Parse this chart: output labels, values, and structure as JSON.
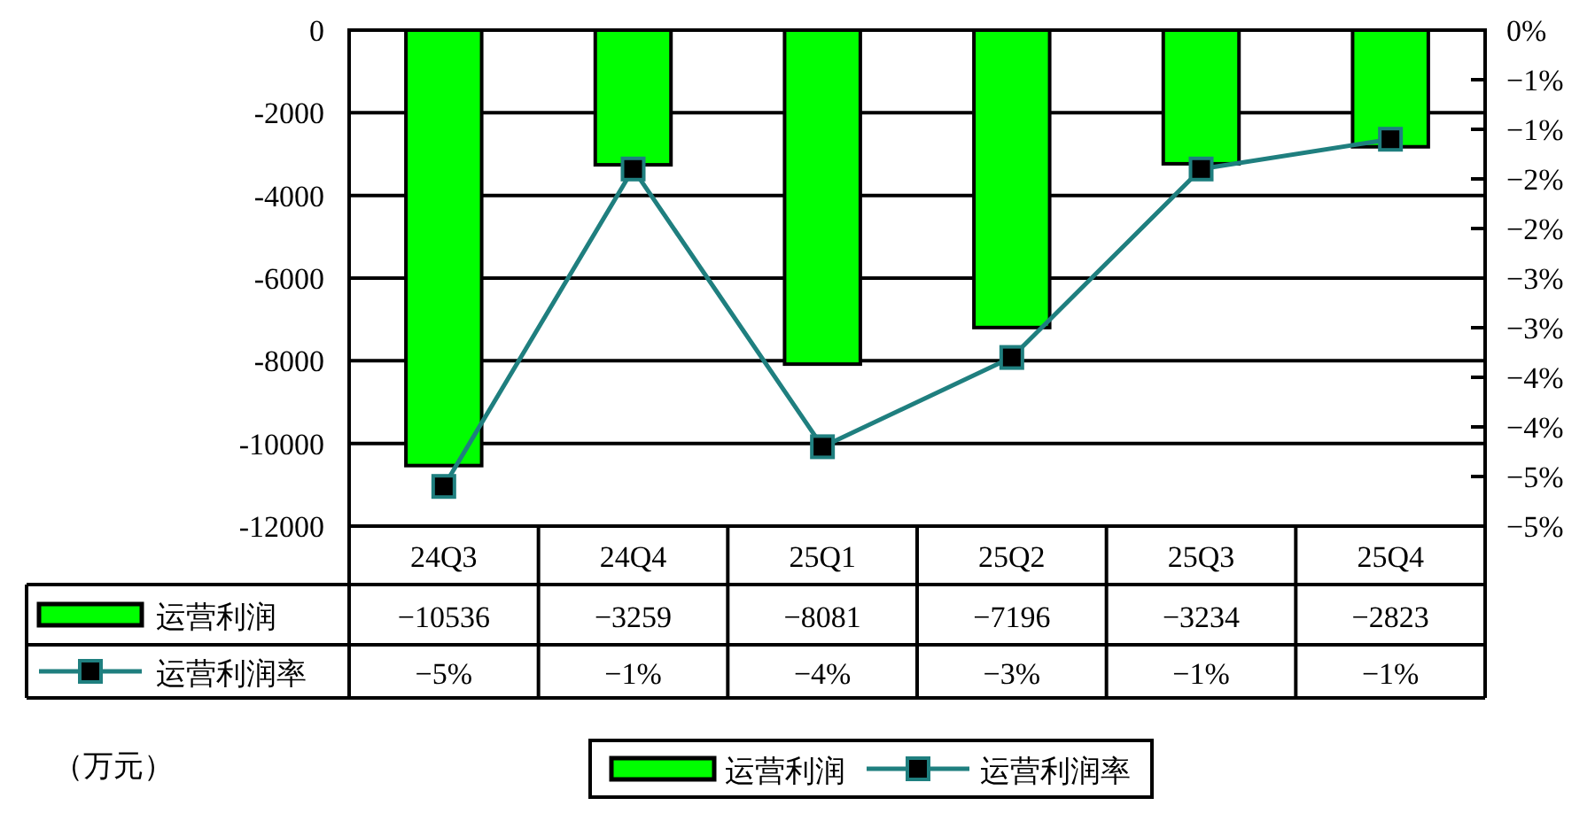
{
  "chart_data": {
    "type": "bar",
    "categories": [
      "24Q3",
      "24Q4",
      "25Q1",
      "25Q2",
      "25Q3",
      "25Q4"
    ],
    "series": [
      {
        "name": "运营利润",
        "color": "#00ff00",
        "values": [
          -10536,
          -3259,
          -8081,
          -7196,
          -3234,
          -2823
        ],
        "value_labels": [
          "−10536",
          "−3259",
          "−8081",
          "−7196",
          "−3234",
          "−2823"
        ]
      },
      {
        "name": "运营利润率",
        "type": "line",
        "axis": "y2",
        "color": "#1f7f7f",
        "values": [
          -4.6,
          -1.4,
          -4.2,
          -3.3,
          -1.4,
          -1.1
        ],
        "value_labels": [
          "−5%",
          "−1%",
          "−4%",
          "−3%",
          "−1%",
          "−1%"
        ]
      }
    ],
    "ylim": [
      -12000,
      0
    ],
    "yticks": [
      0,
      -2000,
      -4000,
      -6000,
      -8000,
      -10000,
      -12000
    ],
    "y2lim": [
      -5,
      0
    ],
    "y2ticks": [
      {
        "value": 0,
        "label": "0%"
      },
      {
        "value": -0.5,
        "label": "−1%"
      },
      {
        "value": -1,
        "label": "−1%"
      },
      {
        "value": -1.5,
        "label": "−2%"
      },
      {
        "value": -2,
        "label": "−2%"
      },
      {
        "value": -2.5,
        "label": "−3%"
      },
      {
        "value": -3,
        "label": "−3%"
      },
      {
        "value": -3.5,
        "label": "−4%"
      },
      {
        "value": -4,
        "label": "−4%"
      },
      {
        "value": -4.5,
        "label": "−5%"
      },
      {
        "value": -5,
        "label": "−5%"
      }
    ],
    "grid": "y",
    "legend": "bottom",
    "marker": "square",
    "annotations": [
      "（万元）"
    ]
  }
}
